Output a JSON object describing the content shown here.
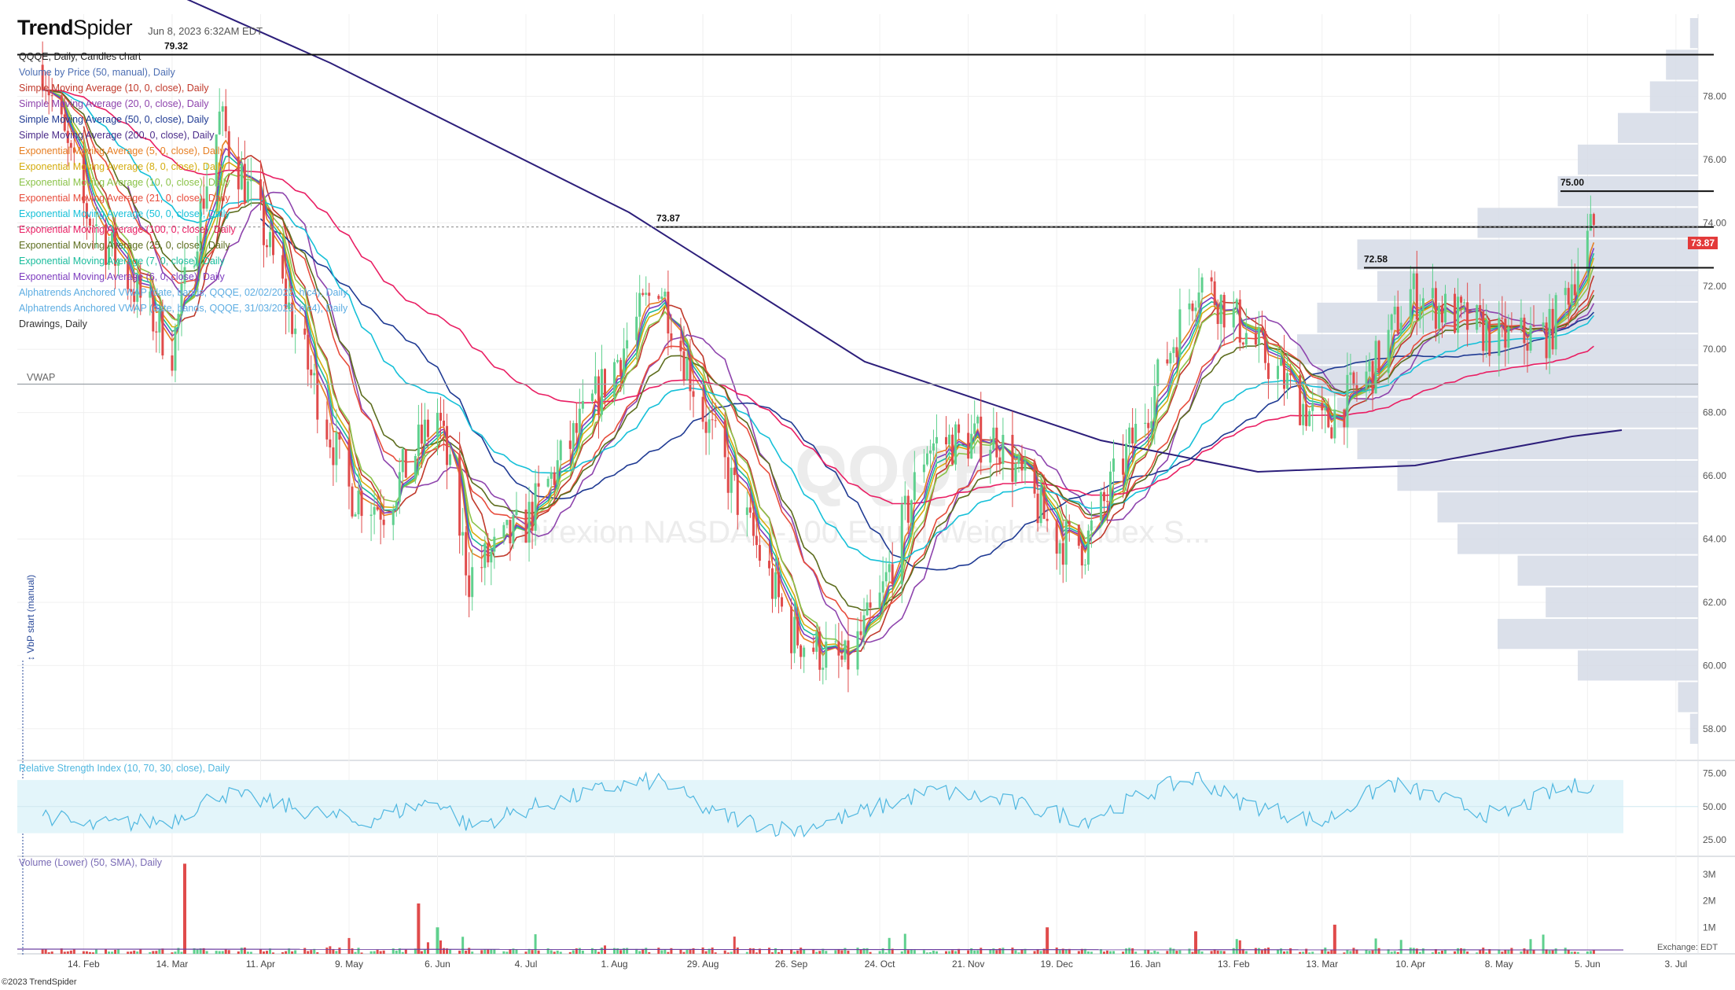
{
  "app": {
    "brand_bold": "Trend",
    "brand_light": "Spider",
    "timestamp": "Jun 8, 2023 6:32AM EDT",
    "footer": "©2023 TrendSpider",
    "exchange_label": "Exchange: EDT",
    "watermark_ticker": "QQQE",
    "watermark_name": "Direxion NASDAQ-100 Equal Weighted Index S..."
  },
  "legend": {
    "title": "QQQE, Daily, Candles chart",
    "items": [
      {
        "text": "Volume by Price (50, manual), Daily",
        "color": "#4d6fb3"
      },
      {
        "text": "Simple Moving Average (10, 0, close), Daily",
        "color": "#c0392b"
      },
      {
        "text": "Simple Moving Average (20, 0, close), Daily",
        "color": "#8e44ad"
      },
      {
        "text": "Simple Moving Average (50, 0, close), Daily",
        "color": "#1f3a93"
      },
      {
        "text": "Simple Moving Average (200, 0, close), Daily",
        "color": "#4b2c8a"
      },
      {
        "text": "Exponential Moving Average (5, 0, close), Daily",
        "color": "#e67e22"
      },
      {
        "text": "Exponential Moving Average (8, 0, close), Daily",
        "color": "#d4ac0d"
      },
      {
        "text": "Exponential Moving Average (10, 0, close), Daily",
        "color": "#8bc34a"
      },
      {
        "text": "Exponential Moving Average (21, 0, close), Daily",
        "color": "#e74c3c"
      },
      {
        "text": "Exponential Moving Average (50, 0, close), Daily",
        "color": "#16c0d8"
      },
      {
        "text": "Exponential Moving Average (100, 0, close), Daily",
        "color": "#e91e63"
      },
      {
        "text": "Exponential Moving Average (25, 0, close), Daily",
        "color": "#5d6d1e"
      },
      {
        "text": "Exponential Moving Average (7, 0, close), Daily",
        "color": "#1abc9c"
      },
      {
        "text": "Exponential Moving Average (6, 0, close), Daily",
        "color": "#7d3cbf"
      },
      {
        "text": "Alphatrends Anchored VWAP (date, bands, QQQE, 02/02/2022, hlc4), Daily",
        "color": "#5dade2"
      },
      {
        "text": "Alphatrends Anchored VWAP (date, bands, QQQE, 31/03/2023, hlc4), Daily",
        "color": "#5dade2"
      },
      {
        "text": "Drawings, Daily",
        "color": "#333333"
      }
    ],
    "vwap_label": "VWAP",
    "vertical_label": "↕ VbP start (manual)"
  },
  "colors": {
    "up": "#5fd08e",
    "down": "#e04b4b",
    "vbp": "#d5dbe6",
    "rsi_line": "#4fb7e0",
    "rsi_band": "#e3f5fa",
    "grid": "#f0f0f0",
    "level": "#111111",
    "last_price": "#e33a3a"
  },
  "chart_data": [
    {
      "type": "candlestick",
      "title": "QQQE, Daily, Candles chart",
      "ylim": [
        57,
        80.6
      ],
      "y_ticks": [
        58.0,
        60.0,
        62.0,
        64.0,
        66.0,
        68.0,
        70.0,
        72.0,
        74.0,
        76.0,
        78.0
      ],
      "y_tick_labels": [
        "58.00",
        "60.00",
        "62.00",
        "64.00",
        "66.00",
        "68.00",
        "70.00",
        "72.00",
        "74.00",
        "76.00",
        "78.00"
      ],
      "x_labels": [
        "14. Feb",
        "14. Mar",
        "11. Apr",
        "9. May",
        "6. Jun",
        "4. Jul",
        "1. Aug",
        "29. Aug",
        "26. Sep",
        "24. Oct",
        "21. Nov",
        "19. Dec",
        "16. Jan",
        "13. Feb",
        "13. Mar",
        "10. Apr",
        "8. May",
        "5. Jun",
        "3. Jul"
      ],
      "last_price": 73.87,
      "last_price_label": "73.87",
      "horizontal_levels": [
        {
          "value": 79.32,
          "label": "79.32"
        },
        {
          "value": 73.87,
          "label": "73.87"
        },
        {
          "value": 72.58,
          "label": "72.58"
        },
        {
          "value": 75.0,
          "label": "75.00"
        }
      ],
      "vwap_level": 68.9,
      "price_path_keypoints": {
        "x": [
          "2022-02-01",
          "2022-02-14",
          "2022-03-14",
          "2022-03-29",
          "2022-04-11",
          "2022-05-09",
          "2022-05-20",
          "2022-06-06",
          "2022-06-16",
          "2022-07-04",
          "2022-08-01",
          "2022-08-15",
          "2022-08-29",
          "2022-09-26",
          "2022-10-13",
          "2022-10-24",
          "2022-11-08",
          "2022-11-30",
          "2022-12-19",
          "2022-12-28",
          "2023-01-16",
          "2023-02-02",
          "2023-02-13",
          "2023-03-13",
          "2023-03-30",
          "2023-04-10",
          "2023-05-08",
          "2023-05-24",
          "2023-06-07"
        ],
        "y": [
          79.0,
          74.5,
          70.0,
          77.3,
          74.0,
          65.5,
          65.0,
          68.0,
          62.8,
          64.5,
          69.5,
          72.2,
          68.0,
          61.0,
          60.0,
          62.0,
          67.0,
          67.2,
          64.0,
          63.8,
          68.0,
          72.3,
          71.0,
          67.5,
          69.5,
          71.8,
          70.3,
          70.5,
          73.9
        ]
      },
      "vbp_profile": {
        "price_bins": [
          58.0,
          59.0,
          60.0,
          61.0,
          62.0,
          63.0,
          64.0,
          65.0,
          66.0,
          67.0,
          68.0,
          69.0,
          70.0,
          71.0,
          72.0,
          73.0,
          74.0,
          75.0,
          76.0,
          77.0,
          78.0,
          79.0,
          80.0
        ],
        "relative_volume": [
          0.02,
          0.05,
          0.3,
          0.5,
          0.38,
          0.45,
          0.6,
          0.65,
          0.75,
          0.85,
          0.9,
          0.95,
          1.0,
          0.95,
          0.8,
          0.85,
          0.55,
          0.35,
          0.3,
          0.2,
          0.12,
          0.08,
          0.02
        ]
      }
    },
    {
      "type": "line",
      "title": "Relative Strength Index (10, 70, 30, close), Daily",
      "ylim": [
        15,
        80
      ],
      "y_ticks": [
        25,
        50,
        75
      ],
      "y_tick_labels": [
        "25.00",
        "50.00",
        "75.00"
      ],
      "band": [
        30,
        70
      ],
      "keypoints": {
        "x": [
          "2022-02-01",
          "2022-02-14",
          "2022-03-14",
          "2022-03-29",
          "2022-04-20",
          "2022-05-12",
          "2022-06-06",
          "2022-06-16",
          "2022-07-04",
          "2022-08-01",
          "2022-08-15",
          "2022-09-01",
          "2022-09-26",
          "2022-10-13",
          "2022-11-10",
          "2022-11-30",
          "2022-12-28",
          "2023-01-20",
          "2023-02-02",
          "2023-02-13",
          "2023-03-13",
          "2023-04-03",
          "2023-04-20",
          "2023-05-08",
          "2023-05-24",
          "2023-06-07"
        ],
        "y": [
          45,
          35,
          40,
          60,
          50,
          38,
          55,
          35,
          48,
          65,
          70,
          45,
          32,
          42,
          62,
          55,
          40,
          63,
          72,
          55,
          38,
          68,
          55,
          42,
          60,
          68
        ]
      }
    },
    {
      "type": "bar",
      "title": "Volume (Lower) (50, SMA), Daily",
      "y_ticks": [
        1000000,
        2000000,
        3000000
      ],
      "y_tick_labels": [
        "1M",
        "2M",
        "3M"
      ],
      "ylim": [
        0,
        3500000
      ],
      "spikes": [
        {
          "x": "2022-03-18",
          "y": 3400000,
          "dir": "down"
        },
        {
          "x": "2022-05-31",
          "y": 1900000,
          "dir": "down"
        },
        {
          "x": "2022-06-06",
          "y": 1000000,
          "dir": "up"
        },
        {
          "x": "2022-12-16",
          "y": 1000000,
          "dir": "down"
        },
        {
          "x": "2023-02-01",
          "y": 850000,
          "dir": "down"
        },
        {
          "x": "2023-03-17",
          "y": 1100000,
          "dir": "down"
        }
      ],
      "typical_volume": 120000
    }
  ]
}
